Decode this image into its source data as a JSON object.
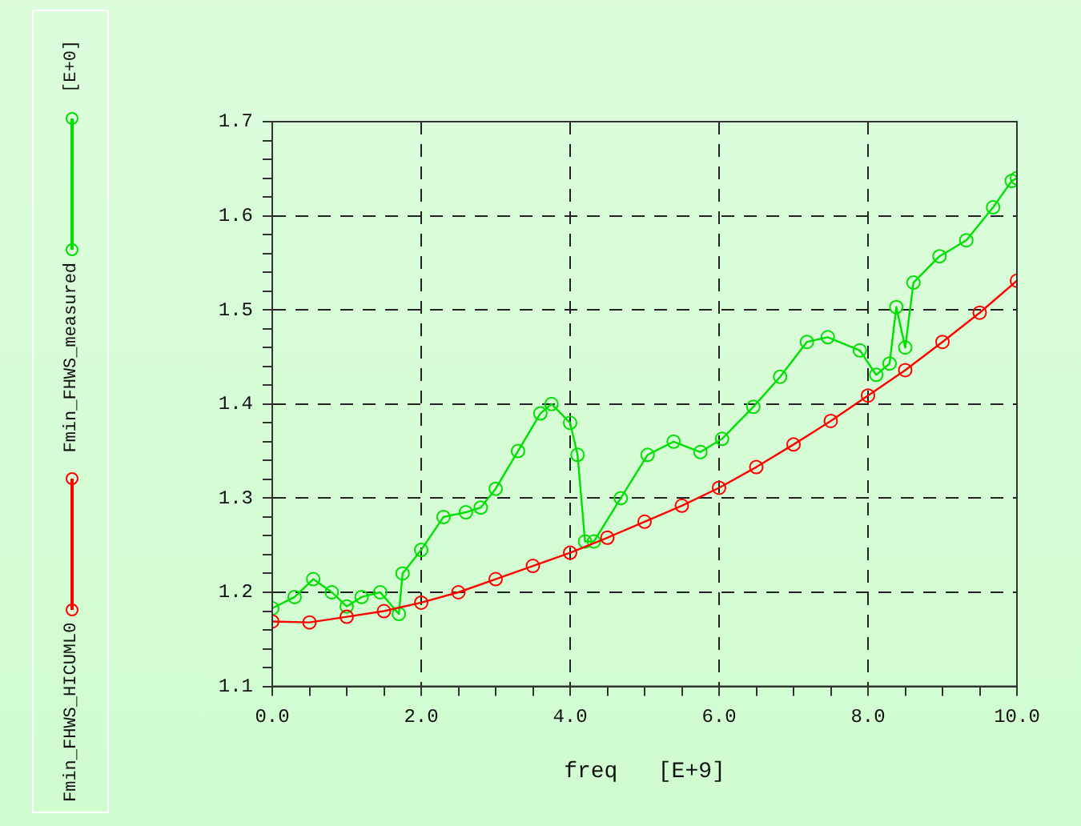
{
  "chart_data": {
    "type": "line",
    "xlabel": "freq   [E+9]",
    "annotations": [
      "[E+0]"
    ],
    "xlim": [
      0,
      10
    ],
    "ylim": [
      1.1,
      1.7
    ],
    "xticks": [
      {
        "value": 0,
        "label": "0.0"
      },
      {
        "value": 0.5,
        "label": null
      },
      {
        "value": 1,
        "label": null
      },
      {
        "value": 1.5,
        "label": null
      },
      {
        "value": 2,
        "label": "2.0"
      },
      {
        "value": 2.5,
        "label": null
      },
      {
        "value": 3,
        "label": null
      },
      {
        "value": 3.5,
        "label": null
      },
      {
        "value": 4,
        "label": "4.0"
      },
      {
        "value": 4.5,
        "label": null
      },
      {
        "value": 5,
        "label": null
      },
      {
        "value": 5.5,
        "label": null
      },
      {
        "value": 6,
        "label": "6.0"
      },
      {
        "value": 6.5,
        "label": null
      },
      {
        "value": 7,
        "label": null
      },
      {
        "value": 7.5,
        "label": null
      },
      {
        "value": 8,
        "label": "8.0"
      },
      {
        "value": 8.5,
        "label": null
      },
      {
        "value": 9,
        "label": null
      },
      {
        "value": 9.5,
        "label": null
      },
      {
        "value": 10,
        "label": "10.0"
      }
    ],
    "yticks": [
      1.1,
      {
        "value": 1.12,
        "label": null
      },
      {
        "value": 1.14,
        "label": null
      },
      {
        "value": 1.16,
        "label": null
      },
      {
        "value": 1.18,
        "label": null
      },
      1.2,
      {
        "value": 1.22,
        "label": null
      },
      {
        "value": 1.24,
        "label": null
      },
      {
        "value": 1.26,
        "label": null
      },
      {
        "value": 1.28,
        "label": null
      },
      1.3,
      {
        "value": 1.32,
        "label": null
      },
      {
        "value": 1.34,
        "label": null
      },
      {
        "value": 1.36,
        "label": null
      },
      {
        "value": 1.38,
        "label": null
      },
      1.4,
      {
        "value": 1.42,
        "label": null
      },
      {
        "value": 1.44,
        "label": null
      },
      {
        "value": 1.46,
        "label": null
      },
      {
        "value": 1.48,
        "label": null
      },
      1.5,
      {
        "value": 1.52,
        "label": null
      },
      {
        "value": 1.54,
        "label": null
      },
      {
        "value": 1.56,
        "label": null
      },
      {
        "value": 1.58,
        "label": null
      },
      1.6,
      {
        "value": 1.62,
        "label": null
      },
      {
        "value": 1.64,
        "label": null
      },
      {
        "value": 1.66,
        "label": null
      },
      {
        "value": 1.68,
        "label": null
      },
      1.7
    ],
    "grid": true,
    "legend": "left",
    "marker": "circle",
    "line_style": "solid",
    "series": [
      {
        "name": "Fmin_FHWS_HICUML0",
        "color": "#ff0000",
        "x": [
          0,
          0.5,
          1,
          1.5,
          2,
          2.5,
          3,
          3.5,
          4,
          4.5,
          5,
          5.5,
          6,
          6.5,
          7,
          7.5,
          8,
          8.5,
          9,
          9.5,
          10
        ],
        "values": [
          1.169,
          1.168,
          1.174,
          1.18,
          1.189,
          1.2,
          1.214,
          1.228,
          1.242,
          1.258,
          1.275,
          1.292,
          1.311,
          1.333,
          1.357,
          1.382,
          1.409,
          1.436,
          1.466,
          1.497,
          1.531
        ]
      },
      {
        "name": "Fmin_FHWS_measured",
        "color": "#00e000",
        "x": [
          0,
          0.3,
          0.55,
          0.8,
          1,
          1.2,
          1.45,
          1.7,
          1.75,
          2,
          2.3,
          2.6,
          2.8,
          3,
          3.3,
          3.6,
          3.75,
          4,
          4.1,
          4.2,
          4.32,
          4.68,
          5.04,
          5.39,
          5.75,
          6.04,
          6.46,
          6.82,
          7.18,
          7.46,
          7.89,
          8.11,
          8.29,
          8.38,
          8.5,
          8.61,
          8.96,
          9.32,
          9.68,
          9.93,
          10
        ],
        "values": [
          1.183,
          1.195,
          1.214,
          1.2,
          1.185,
          1.195,
          1.2,
          1.177,
          1.22,
          1.245,
          1.28,
          1.285,
          1.29,
          1.31,
          1.35,
          1.39,
          1.4,
          1.38,
          1.346,
          1.254,
          1.254,
          1.3,
          1.346,
          1.36,
          1.349,
          1.363,
          1.397,
          1.429,
          1.466,
          1.471,
          1.457,
          1.431,
          1.443,
          1.503,
          1.46,
          1.529,
          1.557,
          1.574,
          1.609,
          1.637,
          1.64
        ]
      }
    ]
  }
}
